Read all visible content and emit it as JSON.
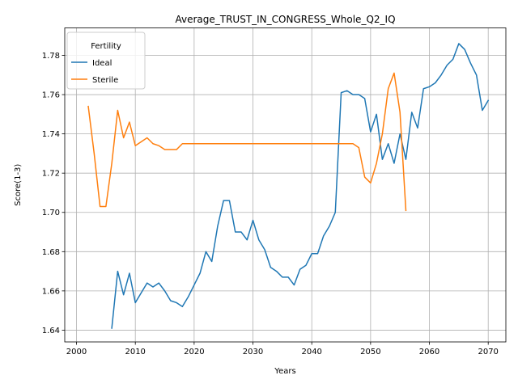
{
  "chart_data": {
    "type": "line",
    "title": "Average_TRUST_IN_CONGRESS_Whole_Q2_IQ",
    "xlabel": "Years",
    "ylabel": "Score(1-3)",
    "xlim": [
      1998,
      2073
    ],
    "ylim": [
      1.634,
      1.794
    ],
    "xticks": [
      2000,
      2010,
      2020,
      2030,
      2040,
      2050,
      2060,
      2070
    ],
    "yticks": [
      1.64,
      1.66,
      1.68,
      1.7,
      1.72,
      1.74,
      1.76,
      1.78
    ],
    "ytick_labels": [
      "1.64",
      "1.66",
      "1.68",
      "1.70",
      "1.72",
      "1.74",
      "1.76",
      "1.78"
    ],
    "grid": true,
    "legend": {
      "title": "Fertility",
      "position": "top-left"
    },
    "series": [
      {
        "name": "Ideal",
        "color": "#1f77b4",
        "x": [
          2006,
          2007,
          2008,
          2009,
          2010,
          2011,
          2012,
          2013,
          2014,
          2015,
          2016,
          2017,
          2018,
          2019,
          2020,
          2021,
          2022,
          2023,
          2024,
          2025,
          2026,
          2027,
          2028,
          2029,
          2030,
          2031,
          2032,
          2033,
          2034,
          2035,
          2036,
          2037,
          2038,
          2039,
          2040,
          2041,
          2042,
          2043,
          2044,
          2045,
          2046,
          2047,
          2048,
          2049,
          2050,
          2051,
          2052,
          2053,
          2054,
          2055,
          2056,
          2057,
          2058,
          2059,
          2060,
          2061,
          2062,
          2063,
          2064,
          2065,
          2066,
          2067,
          2068,
          2069,
          2070
        ],
        "y": [
          1.641,
          1.67,
          1.658,
          1.669,
          1.654,
          1.659,
          1.664,
          1.662,
          1.664,
          1.66,
          1.655,
          1.654,
          1.652,
          1.657,
          1.663,
          1.669,
          1.68,
          1.675,
          1.693,
          1.706,
          1.706,
          1.69,
          1.69,
          1.686,
          1.696,
          1.686,
          1.681,
          1.672,
          1.67,
          1.667,
          1.667,
          1.663,
          1.671,
          1.673,
          1.679,
          1.679,
          1.688,
          1.693,
          1.7,
          1.761,
          1.762,
          1.76,
          1.76,
          1.758,
          1.741,
          1.75,
          1.727,
          1.735,
          1.725,
          1.74,
          1.727,
          1.751,
          1.743,
          1.763,
          1.764,
          1.766,
          1.77,
          1.775,
          1.778,
          1.786,
          1.783,
          1.776,
          1.77,
          1.752,
          1.757
        ]
      },
      {
        "name": "Sterile",
        "color": "#ff7f0e",
        "x": [
          2002,
          2003,
          2004,
          2005,
          2006,
          2007,
          2008,
          2009,
          2010,
          2011,
          2012,
          2013,
          2014,
          2015,
          2016,
          2017,
          2018,
          2019,
          2020,
          2021,
          2022,
          2023,
          2024,
          2025,
          2026,
          2027,
          2028,
          2029,
          2030,
          2031,
          2032,
          2033,
          2034,
          2035,
          2036,
          2037,
          2038,
          2039,
          2040,
          2041,
          2042,
          2043,
          2044,
          2045,
          2046,
          2047,
          2048,
          2049,
          2050,
          2051,
          2052,
          2053,
          2054,
          2055,
          2056
        ],
        "y": [
          1.754,
          1.73,
          1.703,
          1.703,
          1.725,
          1.752,
          1.738,
          1.746,
          1.734,
          1.736,
          1.738,
          1.735,
          1.734,
          1.732,
          1.732,
          1.732,
          1.735,
          1.735,
          1.735,
          1.735,
          1.735,
          1.735,
          1.735,
          1.735,
          1.735,
          1.735,
          1.735,
          1.735,
          1.735,
          1.735,
          1.735,
          1.735,
          1.735,
          1.735,
          1.735,
          1.735,
          1.735,
          1.735,
          1.735,
          1.735,
          1.735,
          1.735,
          1.735,
          1.735,
          1.735,
          1.735,
          1.733,
          1.718,
          1.715,
          1.725,
          1.74,
          1.763,
          1.771,
          1.751,
          1.701
        ]
      }
    ]
  }
}
